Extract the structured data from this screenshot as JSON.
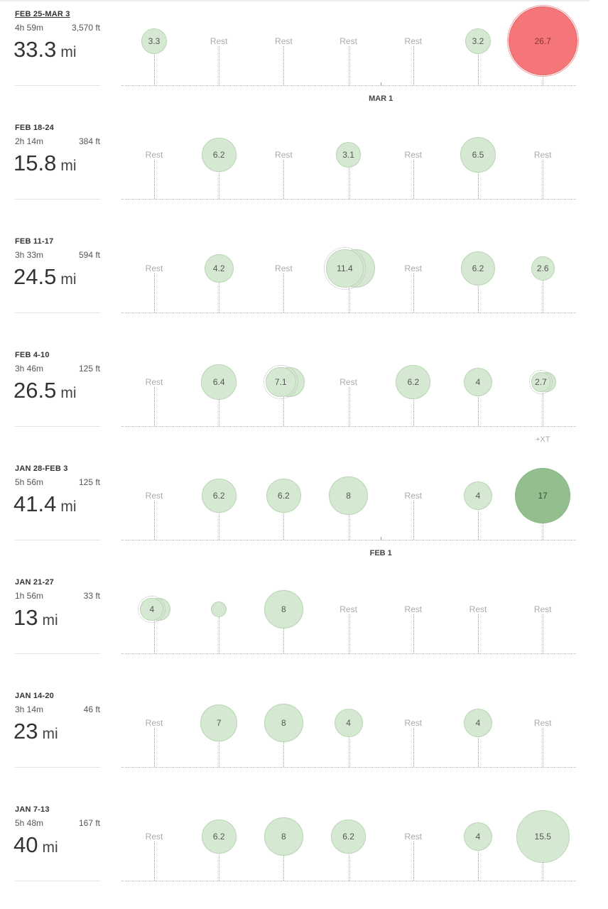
{
  "distance_unit": "mi",
  "weeks": [
    {
      "label": "FEB 25-MAR 3",
      "time": "4h 59m",
      "elevation": "3,570 ft",
      "distance": "33.3",
      "underline": true,
      "days": [
        {
          "v": "3.3",
          "mi": 3.3
        },
        {
          "rest": true
        },
        {
          "rest": true
        },
        {
          "rest": true
        },
        {
          "rest": true
        },
        {
          "v": "3.2",
          "mi": 3.2
        },
        {
          "v": "26.7",
          "mi": 26.7,
          "style": "red"
        }
      ],
      "month_marker": {
        "label": "MAR 1",
        "day_index": 3.5
      }
    },
    {
      "label": "FEB 18-24",
      "time": "2h 14m",
      "elevation": "384 ft",
      "distance": "15.8",
      "days": [
        {
          "rest": true
        },
        {
          "v": "6.2",
          "mi": 6.2
        },
        {
          "rest": true
        },
        {
          "v": "3.1",
          "mi": 3.1
        },
        {
          "rest": true
        },
        {
          "v": "6.5",
          "mi": 6.5
        },
        {
          "rest": true
        }
      ]
    },
    {
      "label": "FEB 11-17",
      "time": "3h 33m",
      "elevation": "594 ft",
      "distance": "24.5",
      "days": [
        {
          "rest": true
        },
        {
          "v": "4.2",
          "mi": 4.2
        },
        {
          "rest": true
        },
        {
          "v": "11.4",
          "mi": 11.4,
          "multi": true
        },
        {
          "rest": true
        },
        {
          "v": "6.2",
          "mi": 6.2
        },
        {
          "v": "2.6",
          "mi": 2.6
        }
      ]
    },
    {
      "label": "FEB 4-10",
      "time": "3h 46m",
      "elevation": "125 ft",
      "distance": "26.5",
      "days": [
        {
          "rest": true
        },
        {
          "v": "6.4",
          "mi": 6.4
        },
        {
          "v": "7.1",
          "mi": 7.1,
          "multi": true
        },
        {
          "rest": true
        },
        {
          "v": "6.2",
          "mi": 6.2
        },
        {
          "v": "4",
          "mi": 4
        },
        {
          "v": "2.7",
          "mi": 2.7,
          "multi": true,
          "xt": "+XT"
        }
      ]
    },
    {
      "label": "JAN 28-FEB 3",
      "time": "5h 56m",
      "elevation": "125 ft",
      "distance": "41.4",
      "days": [
        {
          "rest": true
        },
        {
          "v": "6.2",
          "mi": 6.2
        },
        {
          "v": "6.2",
          "mi": 6.2
        },
        {
          "v": "8",
          "mi": 8
        },
        {
          "rest": true
        },
        {
          "v": "4",
          "mi": 4
        },
        {
          "v": "17",
          "mi": 17,
          "style": "dark"
        }
      ],
      "month_marker": {
        "label": "FEB 1",
        "day_index": 3.5
      }
    },
    {
      "label": "JAN 21-27",
      "time": "1h 56m",
      "elevation": "33 ft",
      "distance": "13",
      "days": [
        {
          "v": "4",
          "mi": 4,
          "multi": true
        },
        {
          "v": "",
          "mi": 1
        },
        {
          "v": "8",
          "mi": 8
        },
        {
          "rest": true
        },
        {
          "rest": true
        },
        {
          "rest": true
        },
        {
          "rest": true
        }
      ]
    },
    {
      "label": "JAN 14-20",
      "time": "3h 14m",
      "elevation": "46 ft",
      "distance": "23",
      "days": [
        {
          "rest": true
        },
        {
          "v": "7",
          "mi": 7
        },
        {
          "v": "8",
          "mi": 8
        },
        {
          "v": "4",
          "mi": 4
        },
        {
          "rest": true
        },
        {
          "v": "4",
          "mi": 4
        },
        {
          "rest": true
        }
      ]
    },
    {
      "label": "JAN 7-13",
      "time": "5h 48m",
      "elevation": "167 ft",
      "distance": "40",
      "days": [
        {
          "rest": true
        },
        {
          "v": "6.2",
          "mi": 6.2
        },
        {
          "v": "8",
          "mi": 8
        },
        {
          "v": "6.2",
          "mi": 6.2
        },
        {
          "rest": true
        },
        {
          "v": "4",
          "mi": 4
        },
        {
          "v": "15.5",
          "mi": 15.5
        }
      ]
    }
  ],
  "rest_label": "Rest"
}
